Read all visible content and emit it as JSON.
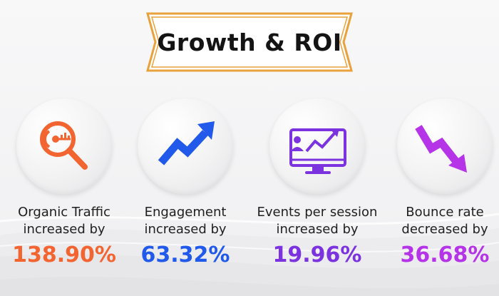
{
  "title": "Growth & ROI",
  "colors": {
    "frame": "#e9a23b",
    "orange": "#f26430",
    "blue": "#2159ea",
    "purple": "#7b33e0",
    "magenta": "#b634e8"
  },
  "metrics": [
    {
      "label_line1": "Organic Traffic",
      "label_line2": "increased by",
      "value": "138.90%",
      "color": "#f26430",
      "icon": "magnifier-icon"
    },
    {
      "label_line1": "Engagement",
      "label_line2": "increased by",
      "value": "63.32%",
      "color": "#2159ea",
      "icon": "trend-up-arrow-icon"
    },
    {
      "label_line1": "Events per session",
      "label_line2": "increased by",
      "value": "19.96%",
      "color": "#7b33e0",
      "icon": "monitor-chart-icon"
    },
    {
      "label_line1": "Bounce rate",
      "label_line2": "decreased by",
      "value": "36.68%",
      "color": "#b634e8",
      "icon": "trend-down-arrow-icon"
    }
  ]
}
